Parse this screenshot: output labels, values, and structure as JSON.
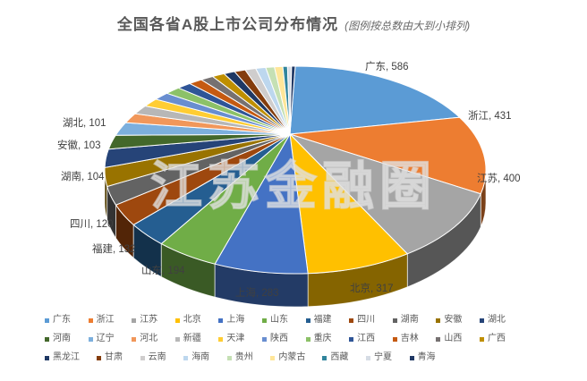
{
  "title": {
    "main": "全国各省A股上市公司分布情况",
    "note": "(图例按总数由大到小排列)"
  },
  "watermark": "江苏金融圈",
  "colors": {
    "background": "#ffffff",
    "title_text": "#595959",
    "data_label_text": "#404040",
    "legend_text": "#595959",
    "slice_border": "#ffffff"
  },
  "chart_data": {
    "type": "pie",
    "style": "3d",
    "title": "全国各省A股上市公司分布情况",
    "subtitle": "(图例按总数由大到小排列)",
    "legend_position": "bottom",
    "sort_order": "descending",
    "data_label_format": "name, value",
    "labeled_slices_note": "values shown in image only for top 11; remaining slice values estimated from slice size",
    "slices": [
      {
        "name": "广东",
        "value": 586,
        "color": "#5B9BD5",
        "labeled": true
      },
      {
        "name": "浙江",
        "value": 431,
        "color": "#ED7D31",
        "labeled": true
      },
      {
        "name": "江苏",
        "value": 400,
        "color": "#A5A5A5",
        "labeled": true
      },
      {
        "name": "北京",
        "value": 317,
        "color": "#FFC000",
        "labeled": true
      },
      {
        "name": "上海",
        "value": 283,
        "color": "#4472C4",
        "labeled": true
      },
      {
        "name": "山东",
        "value": 194,
        "color": "#70AD47",
        "labeled": true
      },
      {
        "name": "福建",
        "value": 132,
        "color": "#255E91",
        "labeled": true
      },
      {
        "name": "四川",
        "value": 120,
        "color": "#9E480E",
        "labeled": true
      },
      {
        "name": "湖南",
        "value": 104,
        "color": "#636363",
        "labeled": true
      },
      {
        "name": "安徽",
        "value": 103,
        "color": "#997300",
        "labeled": true
      },
      {
        "name": "湖北",
        "value": 101,
        "color": "#264478",
        "labeled": true
      },
      {
        "name": "河南",
        "value": 78,
        "color": "#43682B",
        "labeled": false,
        "estimated": true
      },
      {
        "name": "辽宁",
        "value": 75,
        "color": "#7CAFDD",
        "labeled": false,
        "estimated": true
      },
      {
        "name": "河北",
        "value": 56,
        "color": "#F1975A",
        "labeled": false,
        "estimated": true
      },
      {
        "name": "新疆",
        "value": 52,
        "color": "#B7B7B7",
        "labeled": false,
        "estimated": true
      },
      {
        "name": "天津",
        "value": 48,
        "color": "#FFCD33",
        "labeled": false,
        "estimated": true
      },
      {
        "name": "陕西",
        "value": 46,
        "color": "#698ED0",
        "labeled": false,
        "estimated": true
      },
      {
        "name": "重庆",
        "value": 45,
        "color": "#8CC168",
        "labeled": false,
        "estimated": true
      },
      {
        "name": "江西",
        "value": 41,
        "color": "#2F5597",
        "labeled": false,
        "estimated": true
      },
      {
        "name": "吉林",
        "value": 40,
        "color": "#C55A11",
        "labeled": false,
        "estimated": true
      },
      {
        "name": "山西",
        "value": 38,
        "color": "#767171",
        "labeled": false,
        "estimated": true
      },
      {
        "name": "广西",
        "value": 37,
        "color": "#BF8F00",
        "labeled": false,
        "estimated": true
      },
      {
        "name": "黑龙江",
        "value": 33,
        "color": "#1F3864",
        "labeled": false,
        "estimated": true
      },
      {
        "name": "甘肃",
        "value": 33,
        "color": "#843C0C",
        "labeled": false,
        "estimated": true
      },
      {
        "name": "云南",
        "value": 32,
        "color": "#CFCDCD",
        "labeled": false,
        "estimated": true
      },
      {
        "name": "海南",
        "value": 30,
        "color": "#BDD7EE",
        "labeled": false,
        "estimated": true
      },
      {
        "name": "贵州",
        "value": 26,
        "color": "#C5E0B4",
        "labeled": false,
        "estimated": true
      },
      {
        "name": "内蒙古",
        "value": 25,
        "color": "#FFE699",
        "labeled": false,
        "estimated": true
      },
      {
        "name": "西藏",
        "value": 14,
        "color": "#31859C",
        "labeled": false,
        "estimated": true
      },
      {
        "name": "宁夏",
        "value": 12,
        "color": "#D6DCE5",
        "labeled": false,
        "estimated": true
      },
      {
        "name": "青海",
        "value": 11,
        "color": "#203864",
        "labeled": false,
        "estimated": true
      }
    ],
    "legend_rows": [
      11,
      11,
      9
    ]
  }
}
